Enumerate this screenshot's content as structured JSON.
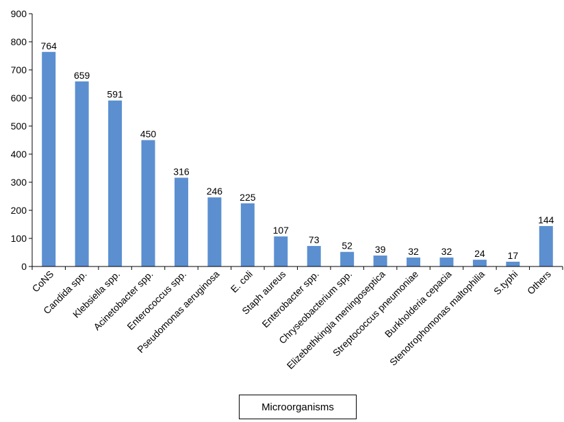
{
  "chart_data": {
    "type": "bar",
    "title": "",
    "xlabel": "Microorganisms",
    "ylabel": "",
    "ylim": [
      0,
      900
    ],
    "yticks": [
      0,
      100,
      200,
      300,
      400,
      500,
      600,
      700,
      800,
      900
    ],
    "grid": false,
    "legend": "none",
    "bar_color": "#5b8fd0",
    "categories": [
      "CoNS",
      "Candida spp.",
      "Klebsiella spp.",
      "Acinetobacter spp.",
      "Enterococcus spp.",
      "Pseudomonas aeruginosa",
      "E. coli",
      "Staph aureus",
      "Enterobacter spp.",
      "Chryseobacterium spp.",
      "Elizebethkingia meningoseptica",
      "Streptococcus pneumoniae",
      "Burkholderia cepacia",
      "Stenotrophomonas maltophilia",
      "S.typhi",
      "Others"
    ],
    "values": [
      764,
      659,
      591,
      450,
      316,
      246,
      225,
      107,
      73,
      52,
      39,
      32,
      32,
      24,
      17,
      144
    ]
  }
}
